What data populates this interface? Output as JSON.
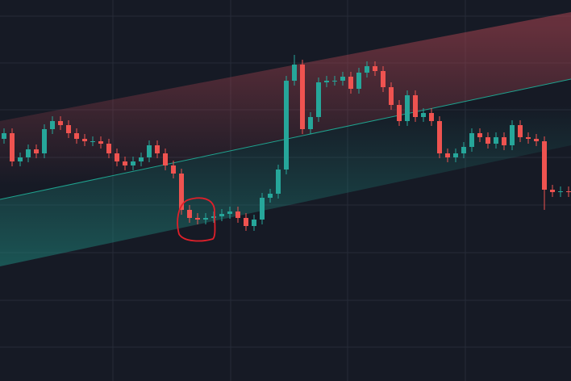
{
  "chart_data": {
    "type": "candlestick",
    "up_color": "#26a69a",
    "down_color": "#ef5350",
    "ylim": [
      0,
      472
    ],
    "open": [
      300,
      307,
      272,
      277,
      287,
      282,
      312,
      322,
      317,
      307,
      300,
      297,
      297,
      294,
      282,
      272,
      267,
      272,
      277,
      292,
      282,
      267,
      257,
      212,
      202,
      200,
      202,
      204,
      207,
      210,
      202,
      192,
      200,
      227,
      232,
      262,
      372,
      392,
      312,
      327,
      370,
      372,
      372,
      377,
      362,
      382,
      390,
      384,
      364,
      342,
      322,
      354,
      327,
      332,
      322,
      282,
      277,
      282,
      290,
      307,
      302,
      294,
      302,
      292,
      317,
      302,
      300,
      297,
      237,
      234,
      235
    ],
    "high": [
      313,
      313,
      283,
      293,
      293,
      318,
      328,
      328,
      323,
      313,
      306,
      303,
      303,
      300,
      288,
      278,
      278,
      283,
      298,
      298,
      288,
      273,
      263,
      218,
      208,
      208,
      210,
      213,
      216,
      216,
      208,
      206,
      233,
      238,
      268,
      378,
      404,
      398,
      333,
      376,
      378,
      378,
      383,
      383,
      388,
      396,
      396,
      390,
      370,
      348,
      360,
      360,
      338,
      338,
      328,
      288,
      288,
      296,
      313,
      313,
      308,
      308,
      308,
      323,
      323,
      308,
      306,
      303,
      243,
      241,
      241
    ],
    "low": [
      294,
      266,
      266,
      271,
      276,
      276,
      306,
      311,
      301,
      294,
      291,
      291,
      288,
      276,
      266,
      261,
      261,
      266,
      271,
      276,
      261,
      251,
      206,
      196,
      194,
      194,
      196,
      198,
      201,
      196,
      186,
      186,
      194,
      221,
      226,
      256,
      366,
      306,
      306,
      321,
      364,
      366,
      366,
      356,
      356,
      376,
      378,
      358,
      336,
      316,
      316,
      321,
      321,
      316,
      276,
      271,
      271,
      276,
      284,
      296,
      288,
      288,
      286,
      286,
      296,
      294,
      291,
      212,
      228,
      228,
      228
    ],
    "close": [
      307,
      272,
      277,
      287,
      282,
      312,
      322,
      317,
      307,
      300,
      297,
      297,
      294,
      282,
      272,
      267,
      272,
      277,
      292,
      282,
      267,
      257,
      212,
      202,
      200,
      202,
      204,
      207,
      210,
      202,
      192,
      200,
      227,
      232,
      262,
      372,
      392,
      312,
      327,
      370,
      372,
      372,
      377,
      362,
      382,
      390,
      384,
      364,
      342,
      322,
      354,
      327,
      332,
      322,
      282,
      277,
      282,
      290,
      307,
      302,
      294,
      302,
      292,
      317,
      302,
      300,
      297,
      237,
      234,
      235,
      234
    ]
  }
}
